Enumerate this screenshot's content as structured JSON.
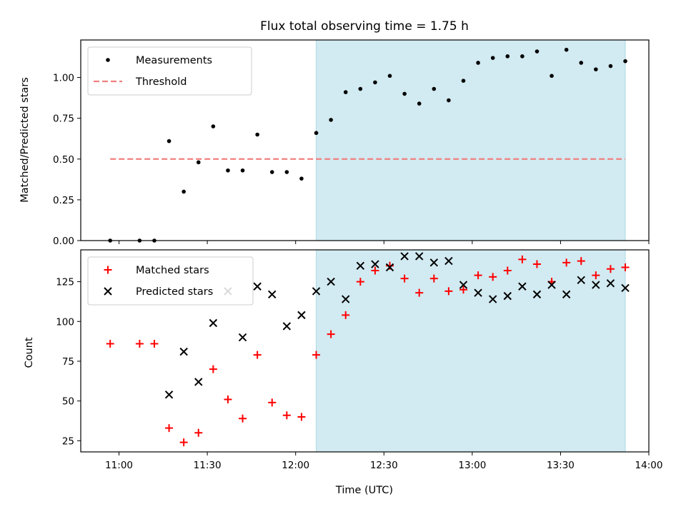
{
  "title": "Flux total observing time = 1.75 h",
  "colors": {
    "measurement": "#000000",
    "threshold": "#f08080",
    "matched": "#ff0000",
    "predicted": "#000000",
    "span": "#add8e6"
  },
  "chart_data": [
    {
      "type": "scatter",
      "ylabel": "Matched/Predicted stars",
      "xlim": [
        "10:47",
        "14:00"
      ],
      "ylim": [
        0,
        1.23
      ],
      "yticks": [
        "0.00",
        "0.25",
        "0.50",
        "0.75",
        "1.00"
      ],
      "legend_position": "top-left",
      "shaded_span": [
        "12:07",
        "13:52"
      ],
      "series": [
        {
          "name": "Measurements",
          "x": [
            "10:57",
            "11:07",
            "11:12",
            "11:17",
            "11:22",
            "11:27",
            "11:32",
            "11:37",
            "11:42",
            "11:47",
            "11:52",
            "11:57",
            "12:02",
            "12:07",
            "12:12",
            "12:17",
            "12:22",
            "12:27",
            "12:32",
            "12:37",
            "12:42",
            "12:47",
            "12:52",
            "12:57",
            "13:02",
            "13:07",
            "13:12",
            "13:17",
            "13:22",
            "13:27",
            "13:32",
            "13:37",
            "13:42",
            "13:47",
            "13:52"
          ],
          "y": [
            0.0,
            0.0,
            0.0,
            0.61,
            0.3,
            0.48,
            0.7,
            0.43,
            0.43,
            0.65,
            0.42,
            0.42,
            0.38,
            0.66,
            0.74,
            0.91,
            0.93,
            0.97,
            1.01,
            0.9,
            0.84,
            0.93,
            0.86,
            0.98,
            1.09,
            1.12,
            1.13,
            1.13,
            1.16,
            1.01,
            1.17,
            1.09,
            1.05,
            1.07,
            1.1
          ]
        },
        {
          "name": "Threshold",
          "x": [
            "10:57",
            "13:52"
          ],
          "y": [
            0.5,
            0.5
          ]
        }
      ]
    },
    {
      "type": "scatter",
      "xlabel": "Time (UTC)",
      "ylabel": "Count",
      "xlim": [
        "10:47",
        "14:00"
      ],
      "ylim": [
        18,
        145
      ],
      "xticks": [
        "11:00",
        "11:30",
        "12:00",
        "12:30",
        "13:00",
        "13:30",
        "14:00"
      ],
      "yticks": [
        "25",
        "50",
        "75",
        "100",
        "125"
      ],
      "legend_position": "top-left",
      "shaded_span": [
        "12:07",
        "13:52"
      ],
      "series": [
        {
          "name": "Matched stars",
          "x": [
            "10:57",
            "11:07",
            "11:12",
            "11:17",
            "11:22",
            "11:27",
            "11:32",
            "11:37",
            "11:42",
            "11:47",
            "11:52",
            "11:57",
            "12:02",
            "12:07",
            "12:12",
            "12:17",
            "12:22",
            "12:27",
            "12:32",
            "12:37",
            "12:42",
            "12:47",
            "12:52",
            "12:57",
            "13:02",
            "13:07",
            "13:12",
            "13:17",
            "13:22",
            "13:27",
            "13:32",
            "13:37",
            "13:42",
            "13:47",
            "13:52"
          ],
          "y": [
            86,
            86,
            86,
            33,
            24,
            30,
            70,
            51,
            39,
            79,
            49,
            41,
            40,
            79,
            92,
            104,
            125,
            132,
            135,
            127,
            118,
            127,
            119,
            120,
            129,
            128,
            132,
            139,
            136,
            125,
            137,
            138,
            129,
            133,
            134
          ]
        },
        {
          "name": "Predicted stars",
          "x": [
            "11:17",
            "11:22",
            "11:27",
            "11:32",
            "11:37",
            "11:42",
            "11:47",
            "11:52",
            "11:57",
            "12:02",
            "12:07",
            "12:12",
            "12:17",
            "12:22",
            "12:27",
            "12:32",
            "12:37",
            "12:42",
            "12:47",
            "12:52",
            "12:57",
            "13:02",
            "13:07",
            "13:12",
            "13:17",
            "13:22",
            "13:27",
            "13:32",
            "13:37",
            "13:42",
            "13:47",
            "13:52"
          ],
          "y": [
            54,
            81,
            62,
            99,
            119,
            90,
            122,
            117,
            97,
            104,
            119,
            125,
            114,
            135,
            136,
            134,
            141,
            141,
            137,
            138,
            123,
            118,
            114,
            116,
            122,
            117,
            123,
            117,
            126,
            123,
            124,
            121
          ]
        }
      ]
    }
  ]
}
